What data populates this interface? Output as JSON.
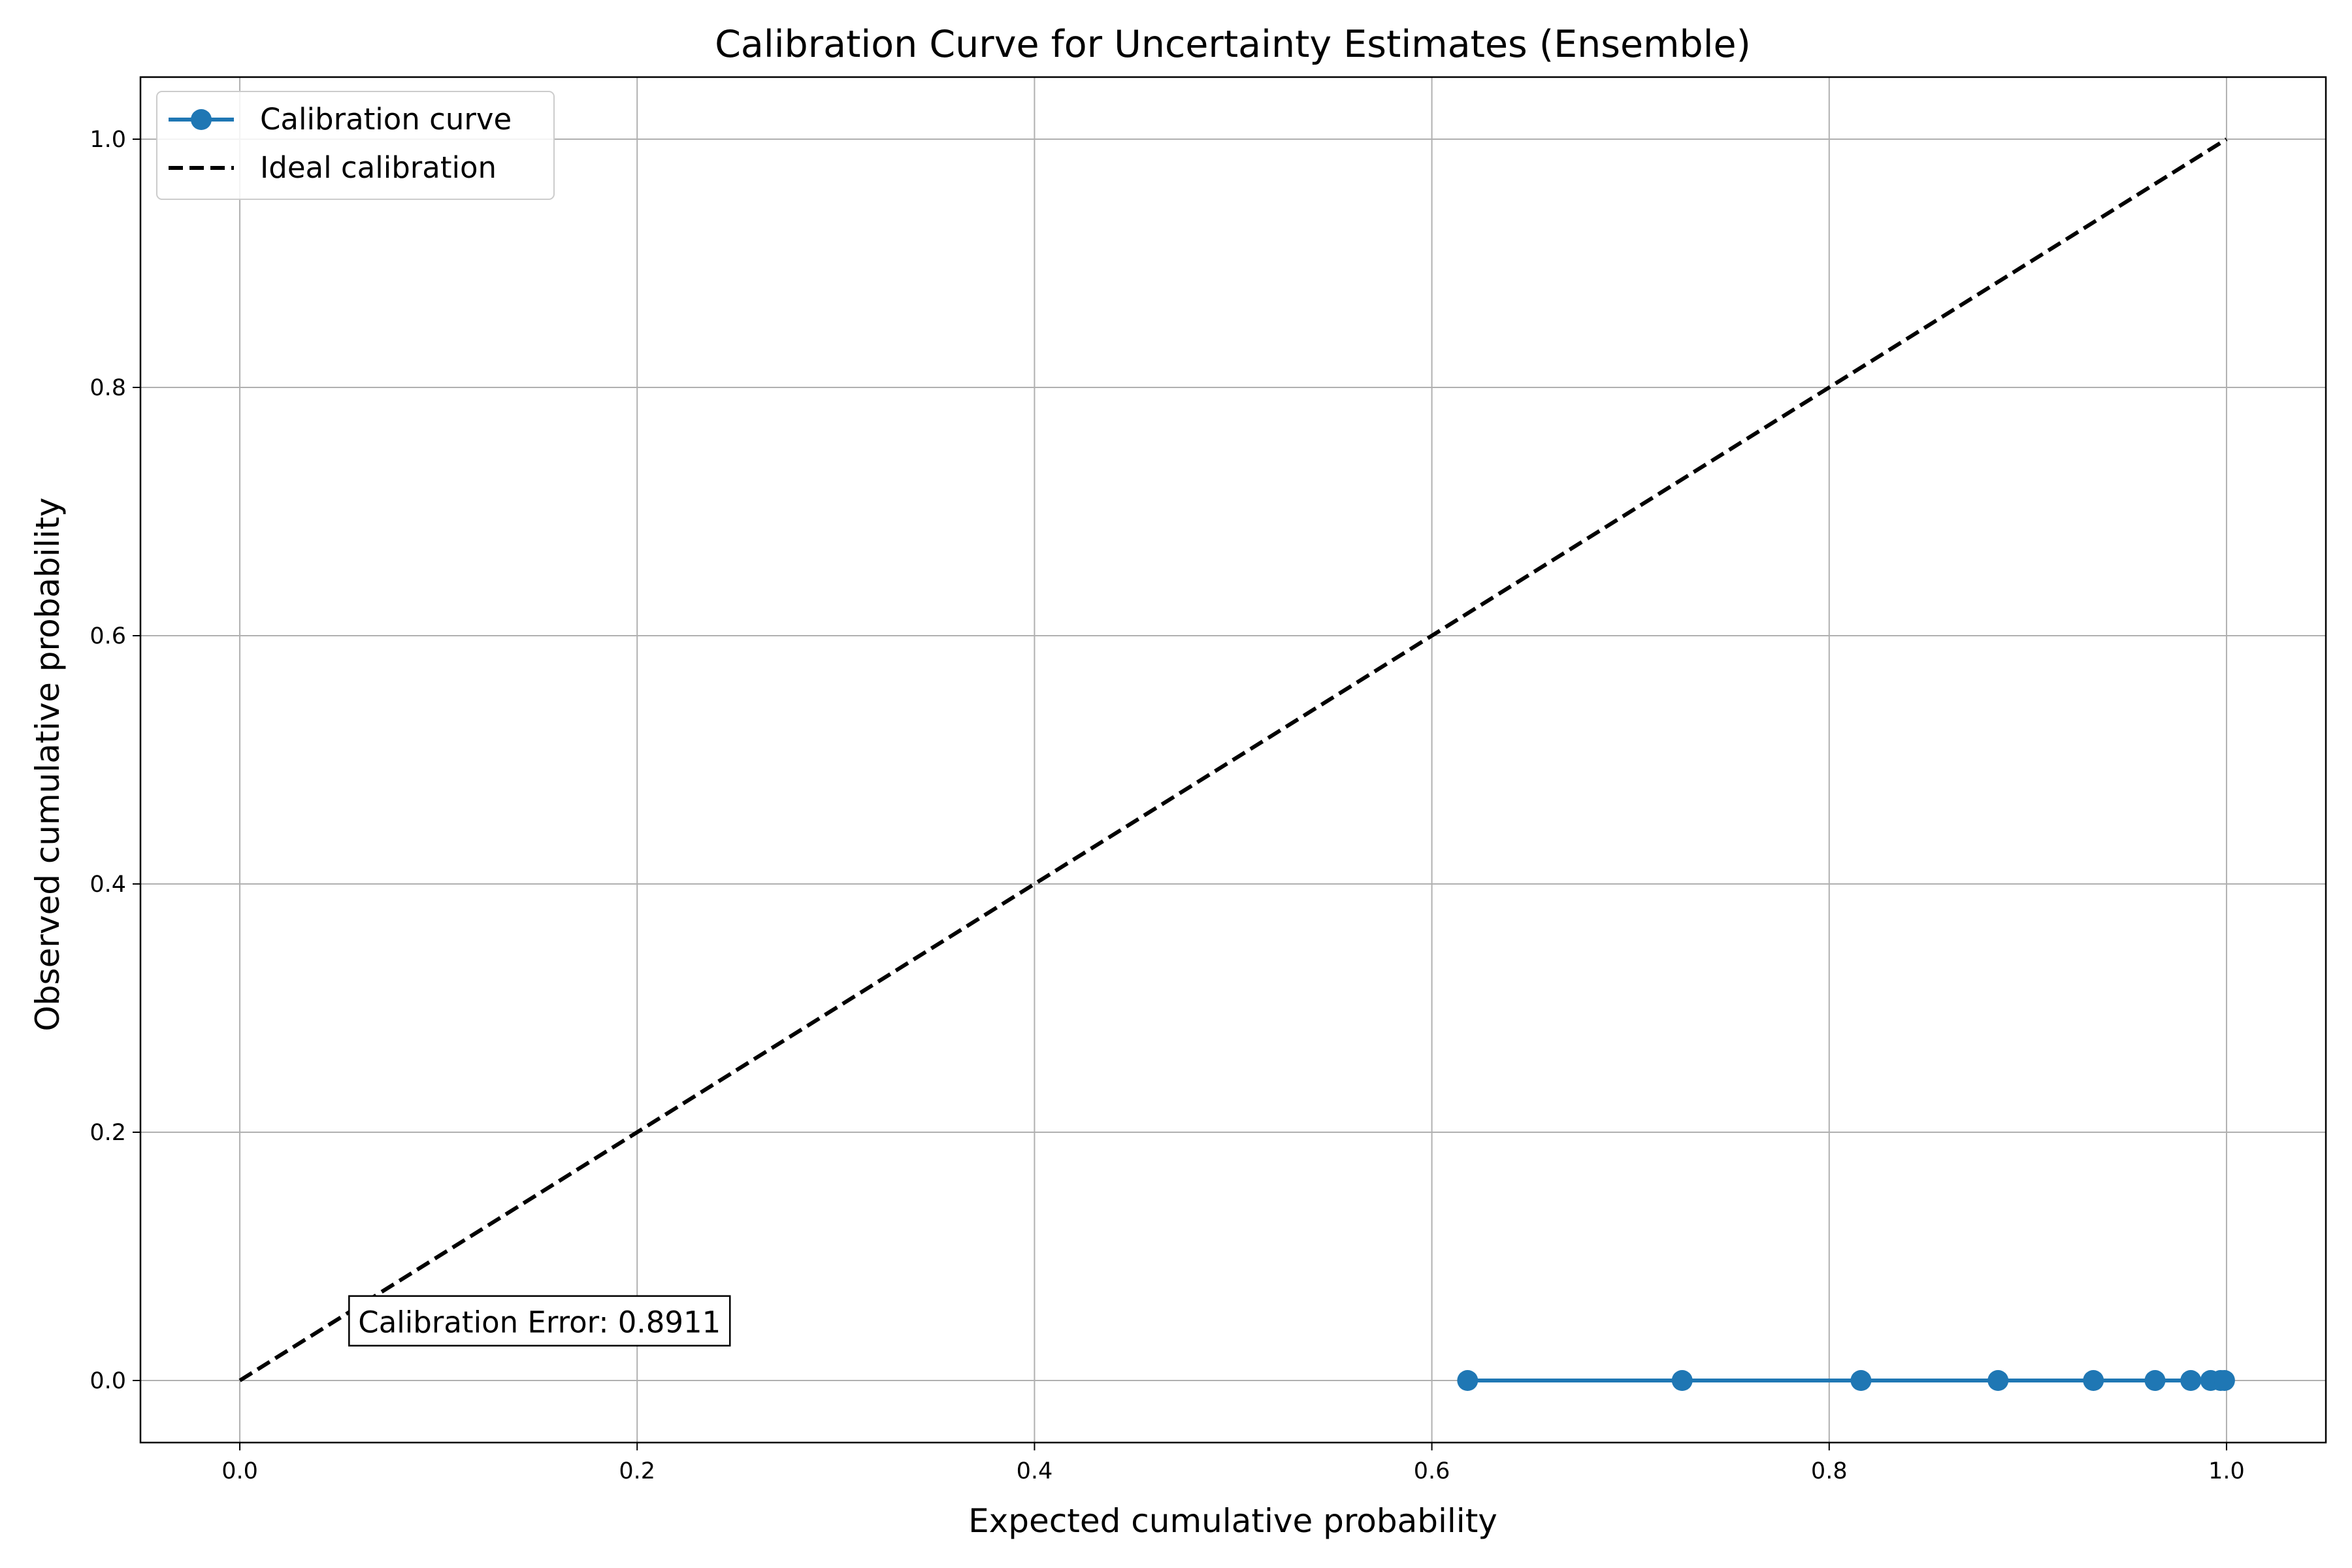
{
  "chart_data": {
    "type": "line",
    "title": "Calibration Curve for Uncertainty Estimates (Ensemble)",
    "xlabel": "Expected cumulative probability",
    "ylabel": "Observed cumulative probability",
    "xlim": [
      -0.05,
      1.05
    ],
    "ylim": [
      -0.05,
      1.05
    ],
    "x_ticks": [
      0.0,
      0.2,
      0.4,
      0.6,
      0.8,
      1.0
    ],
    "y_ticks": [
      0.0,
      0.2,
      0.4,
      0.6,
      0.8,
      1.0
    ],
    "x_tick_labels": [
      "0.0",
      "0.2",
      "0.4",
      "0.6",
      "0.8",
      "1.0"
    ],
    "y_tick_labels": [
      "0.0",
      "0.2",
      "0.4",
      "0.6",
      "0.8",
      "1.0"
    ],
    "grid": true,
    "legend_position": "top-left",
    "series": [
      {
        "name": "Calibration curve",
        "style": "solid line with circle markers",
        "color": "#1f77b4",
        "x": [
          0.618,
          0.726,
          0.816,
          0.885,
          0.933,
          0.964,
          0.982,
          0.992,
          0.997,
          0.999
        ],
        "y": [
          0,
          0,
          0,
          0,
          0,
          0,
          0,
          0,
          0,
          0
        ]
      },
      {
        "name": "Ideal calibration",
        "style": "dashed line",
        "color": "#000000",
        "x": [
          0.0,
          1.0
        ],
        "y": [
          0.0,
          1.0
        ]
      }
    ],
    "annotations": [
      {
        "text": "Calibration Error: 0.8911",
        "x": 0.055,
        "y": 0.047
      }
    ]
  }
}
